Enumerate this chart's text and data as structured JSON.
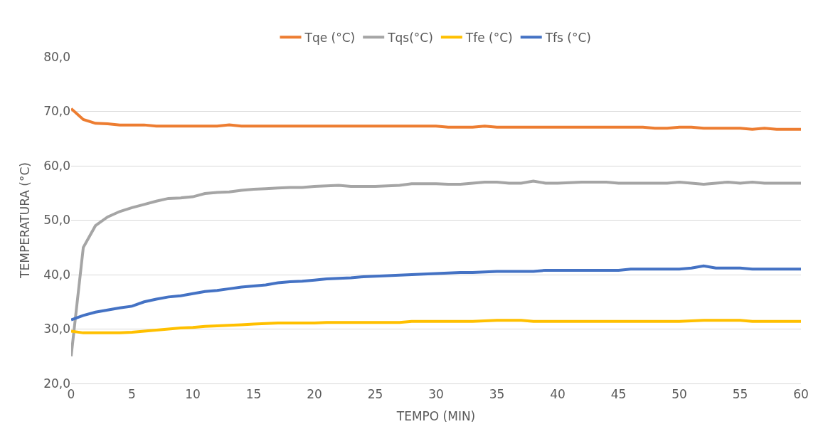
{
  "chart_data": {
    "type": "line",
    "xlabel": "TEMPO (MIN)",
    "ylabel": "TEMPERATURA (°C)",
    "x": [
      0,
      1,
      2,
      3,
      4,
      5,
      6,
      7,
      8,
      9,
      10,
      11,
      12,
      13,
      14,
      15,
      16,
      17,
      18,
      19,
      20,
      21,
      22,
      23,
      24,
      25,
      26,
      27,
      28,
      29,
      30,
      31,
      32,
      33,
      34,
      35,
      36,
      37,
      38,
      39,
      40,
      41,
      42,
      43,
      44,
      45,
      46,
      47,
      48,
      49,
      50,
      51,
      52,
      53,
      54,
      55,
      56,
      57,
      58,
      59,
      60
    ],
    "series": [
      {
        "name": "Tqe (°C)",
        "color": "#ed7d31",
        "values": [
          70.5,
          68.5,
          67.8,
          67.7,
          67.5,
          67.5,
          67.5,
          67.3,
          67.3,
          67.3,
          67.3,
          67.3,
          67.3,
          67.5,
          67.3,
          67.3,
          67.3,
          67.3,
          67.3,
          67.3,
          67.3,
          67.3,
          67.3,
          67.3,
          67.3,
          67.3,
          67.3,
          67.3,
          67.3,
          67.3,
          67.3,
          67.1,
          67.1,
          67.1,
          67.3,
          67.1,
          67.1,
          67.1,
          67.1,
          67.1,
          67.1,
          67.1,
          67.1,
          67.1,
          67.1,
          67.1,
          67.1,
          67.1,
          66.9,
          66.9,
          67.1,
          67.1,
          66.9,
          66.9,
          66.9,
          66.9,
          66.7,
          66.9,
          66.7,
          66.7,
          66.7
        ]
      },
      {
        "name": "Tqs(°C)",
        "color": "#a5a5a5",
        "values": [
          25,
          45,
          49,
          50.6,
          51.6,
          52.3,
          52.9,
          53.5,
          54,
          54.1,
          54.3,
          54.9,
          55.1,
          55.2,
          55.5,
          55.7,
          55.8,
          55.9,
          56,
          56,
          56.2,
          56.3,
          56.4,
          56.2,
          56.2,
          56.2,
          56.3,
          56.4,
          56.7,
          56.7,
          56.7,
          56.6,
          56.6,
          56.8,
          57,
          57,
          56.8,
          56.8,
          57.2,
          56.8,
          56.8,
          56.9,
          57,
          57,
          57,
          56.8,
          56.8,
          56.8,
          56.8,
          56.8,
          57,
          56.8,
          56.6,
          56.8,
          57,
          56.8,
          57,
          56.8,
          56.8,
          56.8,
          56.8
        ]
      },
      {
        "name": "Tfe (°C)",
        "color": "#ffc000",
        "values": [
          29.6,
          29.3,
          29.3,
          29.3,
          29.3,
          29.4,
          29.6,
          29.8,
          30,
          30.2,
          30.3,
          30.5,
          30.6,
          30.7,
          30.8,
          30.9,
          31,
          31.1,
          31.1,
          31.1,
          31.1,
          31.2,
          31.2,
          31.2,
          31.2,
          31.2,
          31.2,
          31.2,
          31.4,
          31.4,
          31.4,
          31.4,
          31.4,
          31.4,
          31.5,
          31.6,
          31.6,
          31.6,
          31.4,
          31.4,
          31.4,
          31.4,
          31.4,
          31.4,
          31.4,
          31.4,
          31.4,
          31.4,
          31.4,
          31.4,
          31.4,
          31.5,
          31.6,
          31.6,
          31.6,
          31.6,
          31.4,
          31.4,
          31.4,
          31.4,
          31.4
        ]
      },
      {
        "name": "Tfs (°C)",
        "color": "#4472c4",
        "values": [
          31.7,
          32.5,
          33.1,
          33.5,
          33.9,
          34.2,
          35,
          35.5,
          35.9,
          36.1,
          36.5,
          36.9,
          37.1,
          37.4,
          37.7,
          37.9,
          38.1,
          38.5,
          38.7,
          38.8,
          39,
          39.2,
          39.3,
          39.4,
          39.6,
          39.7,
          39.8,
          39.9,
          40,
          40.1,
          40.2,
          40.3,
          40.4,
          40.4,
          40.5,
          40.6,
          40.6,
          40.6,
          40.6,
          40.8,
          40.8,
          40.8,
          40.8,
          40.8,
          40.8,
          40.8,
          41,
          41,
          41,
          41,
          41,
          41.2,
          41.6,
          41.2,
          41.2,
          41.2,
          41,
          41,
          41,
          41,
          41
        ]
      }
    ],
    "xlim": [
      0,
      60
    ],
    "xticks": [
      0,
      5,
      10,
      15,
      20,
      25,
      30,
      35,
      40,
      45,
      50,
      55,
      60
    ],
    "ylim": [
      20,
      80
    ],
    "yticks": [
      {
        "value": 20,
        "label": "20,0"
      },
      {
        "value": 30,
        "label": "30,0"
      },
      {
        "value": 40,
        "label": "40,0"
      },
      {
        "value": 50,
        "label": "50,0"
      },
      {
        "value": 60,
        "label": "60,0"
      },
      {
        "value": 70,
        "label": "70,0"
      },
      {
        "value": 80,
        "label": "80,0"
      }
    ],
    "grid": "y",
    "legend": "top",
    "marker": "none",
    "line_style": "solid"
  }
}
